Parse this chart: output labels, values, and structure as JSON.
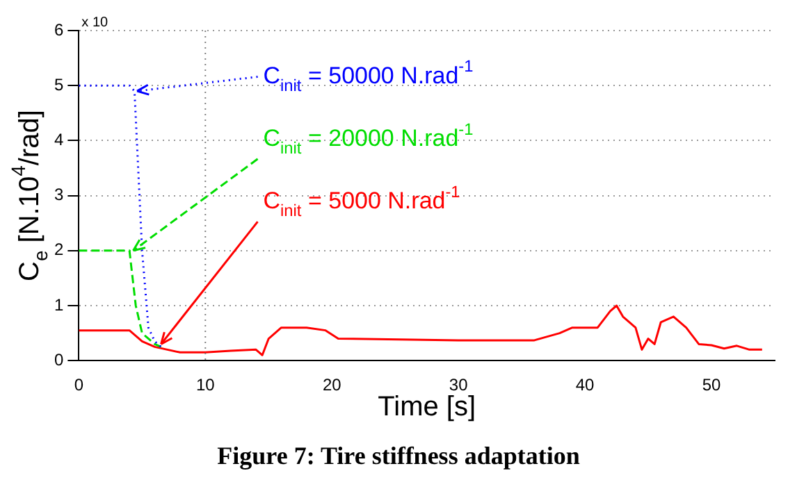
{
  "chart_data": {
    "type": "line",
    "xlabel": "Time [s]",
    "ylabel": "C$_{e}$ [N.10$^{4}$/rad]",
    "xlim": [
      0,
      55
    ],
    "xticks": [
      0,
      10,
      20,
      30,
      40,
      50
    ],
    "ylim": [
      0,
      6
    ],
    "yticks": [
      0,
      1,
      2,
      3,
      4,
      5,
      6
    ],
    "grid": "y",
    "ref_lines": [
      {
        "axis": "x",
        "value": 10,
        "color": "#808080",
        "line_style": "dotted"
      }
    ],
    "series": [
      {
        "color": "#0000ff",
        "line_style": "dotted",
        "x": [
          0,
          4,
          4.4,
          5,
          5.5,
          6,
          6.5
        ],
        "values": [
          5,
          5,
          4.9,
          2,
          0.6,
          0.35,
          0.25
        ]
      },
      {
        "color": "#00dd00",
        "line_style": "dashed",
        "x": [
          0,
          4,
          4.5,
          5,
          6,
          6.5
        ],
        "values": [
          2,
          2,
          1,
          0.5,
          0.3,
          0.25
        ]
      },
      {
        "color": "#ff0000",
        "line_style": "solid",
        "x": [
          0,
          4,
          5,
          6,
          7,
          8,
          10,
          12,
          14,
          14.5,
          15,
          16,
          18,
          19.5,
          20.5,
          30,
          36,
          38,
          39,
          41,
          42,
          42.5,
          43,
          44,
          44.5,
          45,
          45.5,
          46,
          47,
          48,
          49,
          50,
          51,
          52,
          53,
          54
        ],
        "values": [
          0.55,
          0.55,
          0.35,
          0.25,
          0.2,
          0.15,
          0.15,
          0.18,
          0.2,
          0.1,
          0.4,
          0.6,
          0.6,
          0.55,
          0.4,
          0.37,
          0.37,
          0.5,
          0.6,
          0.6,
          0.9,
          1.0,
          0.8,
          0.6,
          0.2,
          0.4,
          0.3,
          0.7,
          0.8,
          0.6,
          0.3,
          0.28,
          0.22,
          0.27,
          0.2,
          0.2
        ]
      }
    ],
    "annotations": [
      {
        "text": "C$_{init}$ = 50000 N.rad$^{-1}$",
        "x": 4.6,
        "y": 4.9
      },
      {
        "text": "C$_{init}$ = 20000 N.rad$^{-1}$",
        "x": 4.3,
        "y": 2.0
      },
      {
        "text": "C$_{init}$ = 5000 N.rad$^{-1}$",
        "x": 6.5,
        "y": 0.3
      },
      "x 10",
      "Figure 7: Tire stiffness adaptation"
    ]
  }
}
